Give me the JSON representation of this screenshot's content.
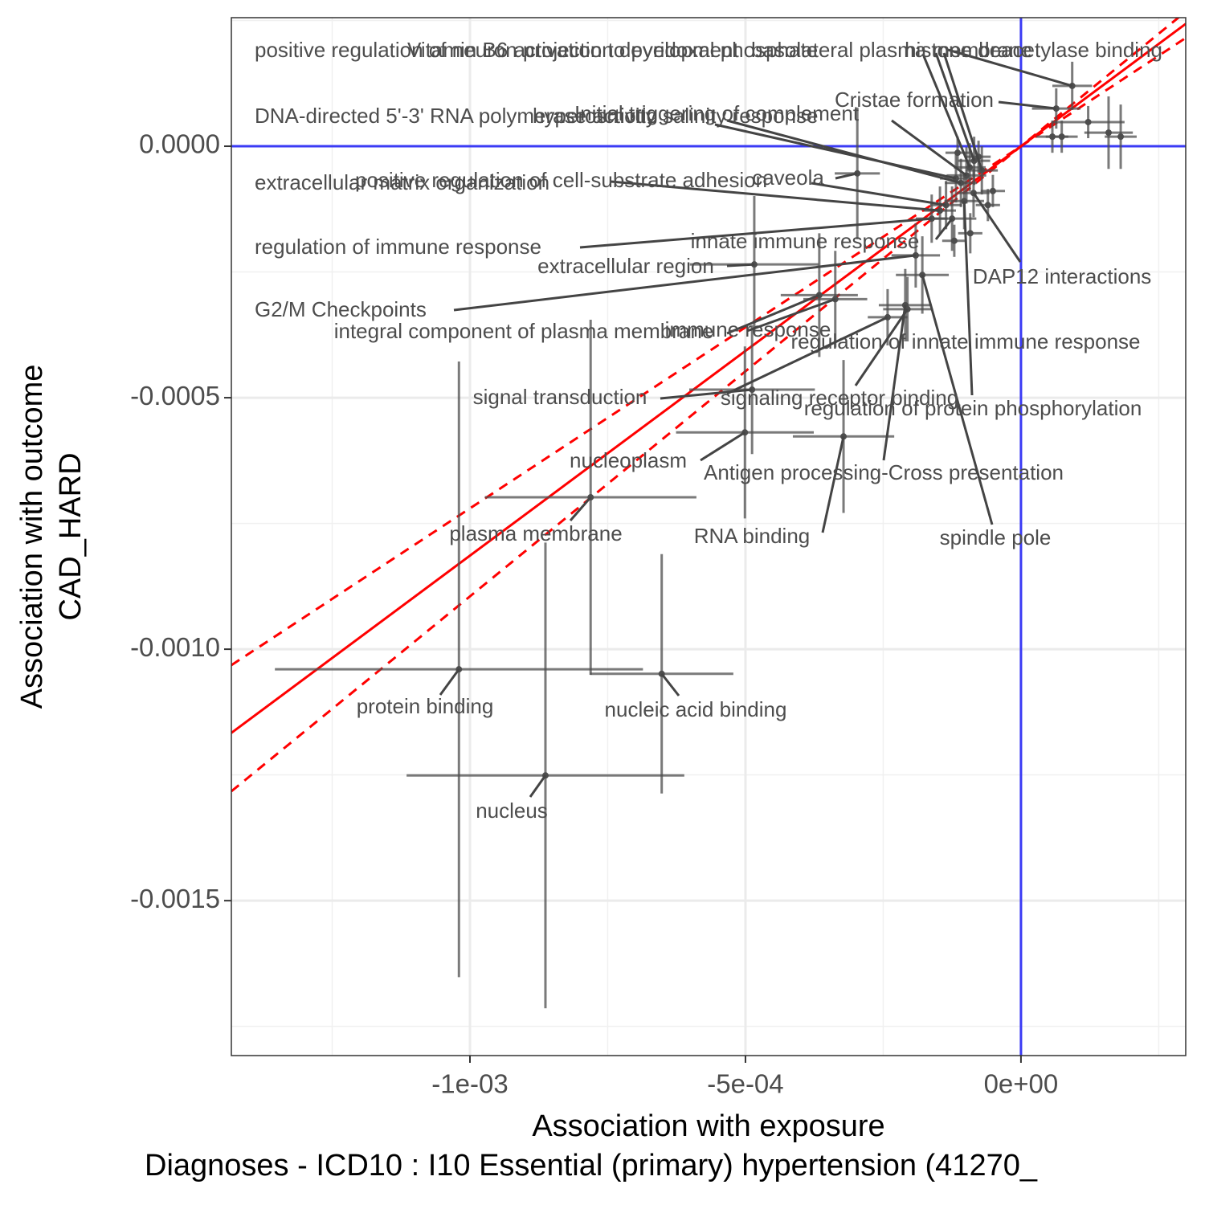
{
  "chart_data": {
    "type": "scatter",
    "xlabel": [
      "Association with exposure",
      "Diagnoses - ICD10 : I10 Essential (primary) hypertension (41270_"
    ],
    "ylabel": [
      "Association with outcome",
      "CAD_HARD"
    ],
    "xlim": [
      -0.001433,
      0.000299
    ],
    "ylim": [
      -0.001808,
      0.0002556
    ],
    "xticks": [
      {
        "value": -0.001,
        "label": "-1e-03"
      },
      {
        "value": -0.0005,
        "label": "-5e-04"
      },
      {
        "value": 0,
        "label": "0e+00"
      }
    ],
    "yticks": [
      {
        "value": 0,
        "label": "0.0000"
      },
      {
        "value": -0.0005,
        "label": "-0.0005"
      },
      {
        "value": -0.001,
        "label": "-0.0010"
      },
      {
        "value": -0.0015,
        "label": "-0.0015"
      }
    ],
    "xminor": [
      -0.00125,
      -0.00075,
      -0.00025,
      0.00025
    ],
    "yminor": [
      0.00025,
      -0.00025,
      -0.00075,
      -0.00125,
      -0.00175
    ],
    "grid": true,
    "color": "#4d4d4d",
    "reference_lines": {
      "x": 0,
      "y": 0,
      "color": "#3b3bf5"
    },
    "fits": [
      {
        "slope": 0.814,
        "style": "solid",
        "color": "#ff0000"
      },
      {
        "slope": 0.72,
        "style": "dashed",
        "color": "#ff0000"
      },
      {
        "slope": 0.895,
        "style": "dashed",
        "color": "#ff0000"
      }
    ],
    "points": [
      {
        "label": "protein binding",
        "x": -0.00102,
        "y": -0.00104,
        "xerr": 0.000334,
        "yerr": 0.000612
      },
      {
        "label": "nucleus",
        "x": -0.000863,
        "y": -0.001251,
        "xerr": 0.000252,
        "yerr": 0.000463
      },
      {
        "label": "nucleic acid binding",
        "x": -0.000652,
        "y": -0.001049,
        "xerr": 0.00013,
        "yerr": 0.000238
      },
      {
        "label": "plasma membrane",
        "x": -0.000781,
        "y": -0.000698,
        "xerr": 0.000192,
        "yerr": 0.000353
      },
      {
        "label": "nucleoplasm",
        "x": -0.000501,
        "y": -0.000569,
        "xerr": 0.000125,
        "yerr": 0.000171
      },
      {
        "label": "signal transduction",
        "x": -0.000488,
        "y": -0.000484,
        "xerr": 0.000114,
        "yerr": 0.000128
      },
      {
        "label": "extracellular region",
        "x": -0.000484,
        "y": -0.000235,
        "xerr": 0.000117,
        "yerr": 0.000136
      },
      {
        "label": "RNA binding",
        "x": -0.000322,
        "y": -0.000577,
        "xerr": 9.2e-05,
        "yerr": 0.000152
      },
      {
        "label": "immune response",
        "x": -0.000366,
        "y": -0.000296,
        "xerr": 7e-05,
        "yerr": 0.000123
      },
      {
        "label": "Antigen processing-Cross presentation",
        "x": -0.00021,
        "y": -0.000316,
        "xerr": 4.8e-05,
        "yerr": 7.2e-05
      },
      {
        "label": "spindle pole",
        "x": -0.000179,
        "y": -0.000256,
        "xerr": 4.8e-05,
        "yerr": 7.7e-05
      },
      {
        "label": "regulation of innate immune response",
        "x": -0.000206,
        "y": -0.000324,
        "xerr": 4.4e-05,
        "yerr": 6.4e-05
      },
      {
        "label": "signaling receptor binding",
        "x": -0.000242,
        "y": -0.00034,
        "xerr": 3.6e-05,
        "yerr": 5.6e-05
      },
      {
        "label": "regulation of protein phosphorylation",
        "x": -0.000103,
        "y": -0.000109,
        "xerr": 3.6e-05,
        "yerr": 5.6e-05
      },
      {
        "label": "caveola",
        "x": -0.000297,
        "y": -5.4e-05,
        "xerr": 4.1e-05,
        "yerr": 0.000131
      },
      {
        "label": "innate immune response",
        "x": -0.000125,
        "y": -0.000144,
        "xerr": 4.4e-05,
        "yerr": 6.4e-05
      },
      {
        "label": "G2/M Checkpoints",
        "x": -0.000191,
        "y": -0.000217,
        "xerr": 4.4e-05,
        "yerr": 6.4e-05
      },
      {
        "label": "regulation of immune response",
        "x": -0.000162,
        "y": -0.000144,
        "xerr": 2.9e-05,
        "yerr": 4.8e-05
      },
      {
        "label": "extracellular matrix organization",
        "x": -0.000147,
        "y": -0.000128,
        "xerr": 2.9e-05,
        "yerr": 4.8e-05
      },
      {
        "label": "positive regulation of cell-substrate adhesion",
        "x": -0.000136,
        "y": -0.000117,
        "xerr": 2.9e-05,
        "yerr": 4.8e-05
      },
      {
        "label": "DNA-directed 5'-3' RNA polymerase activity",
        "x": -0.000118,
        "y": -6.4e-05,
        "xerr": 2.9e-05,
        "yerr": 4.8e-05
      },
      {
        "label": "hyperosmotic salinity response",
        "x": -0.000109,
        "y": -7.3e-05,
        "xerr": 2.9e-05,
        "yerr": 4.8e-05
      },
      {
        "label": "Initial triggering of complement",
        "x": -9.9e-05,
        "y": -5.8e-05,
        "xerr": 3.6e-05,
        "yerr": 5.6e-05
      },
      {
        "label": "Cristae formation",
        "x": 6.4e-05,
        "y": 7.5e-05,
        "xerr": 4.4e-05,
        "yerr": 4e-05
      },
      {
        "label": "histone deacetylase binding",
        "x": 9.3e-05,
        "y": 0.00012,
        "xerr": 3.6e-05,
        "yerr": 4.8e-05
      },
      {
        "label": "positive regulation of neuron projection development",
        "x": -9.3e-05,
        "y": -4.2e-05,
        "xerr": 2.9e-05,
        "yerr": 4.8e-05
      },
      {
        "label": "Vitamin B6 activation to pyridoxal phosphate",
        "x": -8.5e-05,
        "y": -2.9e-05,
        "xerr": 2.9e-05,
        "yerr": 4.8e-05
      },
      {
        "label": "basolateral plasma membrane",
        "x": -7.1e-05,
        "y": -4.8e-05,
        "xerr": 2.9e-05,
        "yerr": 4.8e-05
      },
      {
        "label": "DAP12 interactions",
        "x": -8.6e-05,
        "y": -9.3e-05,
        "xerr": 2.9e-05,
        "yerr": 4.8e-05
      },
      {
        "label": "integral component of plasma membrane",
        "x": -0.000337,
        "y": -0.000304,
        "xerr": 5.8e-05,
        "yerr": 9.6e-05
      },
      {
        "label": null,
        "x": 0.000159,
        "y": 2.7e-05,
        "xerr": 4.4e-05,
        "yerr": 7.2e-05
      },
      {
        "label": null,
        "x": 0.000122,
        "y": 4.8e-05,
        "xerr": 6.6e-05,
        "yerr": 3.2e-05
      },
      {
        "label": null,
        "x": 7.4e-05,
        "y": 1.9e-05,
        "xerr": 2.9e-05,
        "yerr": 3.2e-05
      },
      {
        "label": null,
        "x": 0.000181,
        "y": 1.9e-05,
        "xerr": 2.9e-05,
        "yerr": 6.4e-05
      },
      {
        "label": null,
        "x": 5.7e-05,
        "y": 1.9e-05,
        "xerr": 2.9e-05,
        "yerr": 3.2e-05
      },
      {
        "label": null,
        "x": -6e-05,
        "y": -0.000117,
        "xerr": 2.2e-05,
        "yerr": 3.2e-05
      },
      {
        "label": null,
        "x": -5.1e-05,
        "y": -8.9e-05,
        "xerr": 2.2e-05,
        "yerr": 3.2e-05
      },
      {
        "label": null,
        "x": -7.7e-05,
        "y": -2.1e-05,
        "xerr": 2.2e-05,
        "yerr": 3.2e-05
      },
      {
        "label": null,
        "x": -0.000115,
        "y": -1.3e-05,
        "xerr": 2.2e-05,
        "yerr": 3.2e-05
      },
      {
        "label": null,
        "x": -0.000121,
        "y": -0.000188,
        "xerr": 2.2e-05,
        "yerr": 3.2e-05
      },
      {
        "label": null,
        "x": -9.2e-05,
        "y": -0.000173,
        "xerr": 2.2e-05,
        "yerr": 4e-05
      }
    ]
  }
}
